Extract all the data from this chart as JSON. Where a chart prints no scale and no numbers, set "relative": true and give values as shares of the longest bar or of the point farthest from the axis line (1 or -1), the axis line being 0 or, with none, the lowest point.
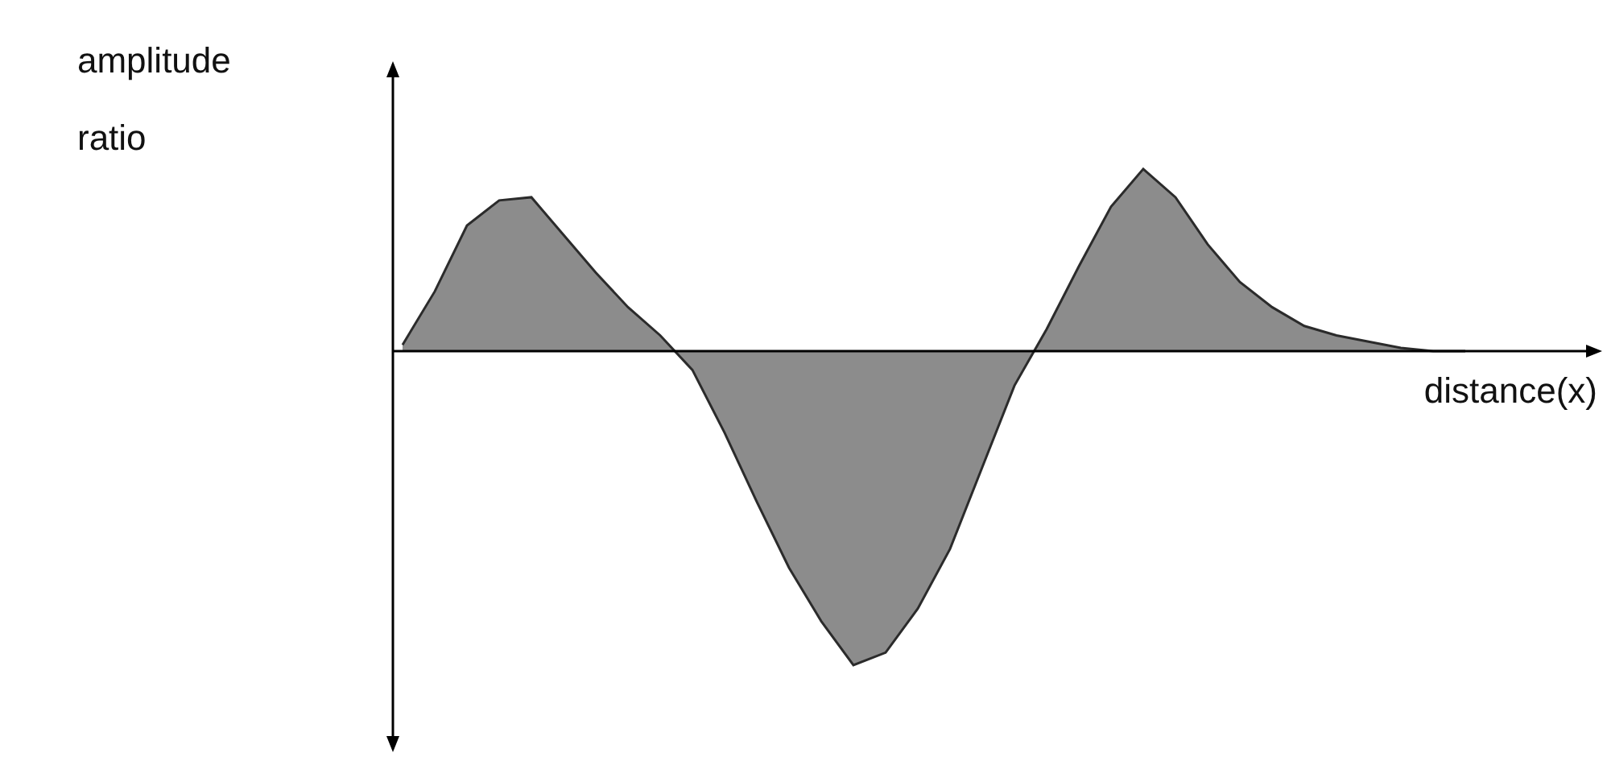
{
  "chart_data": {
    "type": "area",
    "relative": true,
    "xlabel": "distance(x)",
    "ylabel": "amplitude ratio",
    "color": "#8c8c8c",
    "categories": [
      null,
      null,
      null,
      null,
      null,
      null,
      null,
      null,
      null,
      null,
      null,
      null,
      null,
      null,
      null,
      null,
      null,
      null,
      null,
      null,
      null,
      null,
      null,
      null,
      null,
      null,
      null,
      null,
      null,
      null,
      null,
      null,
      null,
      null
    ],
    "values": [
      0.02,
      0.19,
      0.4,
      0.48,
      0.49,
      0.37,
      0.25,
      0.14,
      0.05,
      -0.06,
      -0.26,
      -0.48,
      -0.69,
      -0.86,
      -1,
      -0.96,
      -0.82,
      -0.63,
      -0.37,
      -0.11,
      0.07,
      0.27,
      0.46,
      0.58,
      0.49,
      0.34,
      0.22,
      0.14,
      0.08,
      0.05,
      0.03,
      0.01,
      0,
      0
    ]
  }
}
